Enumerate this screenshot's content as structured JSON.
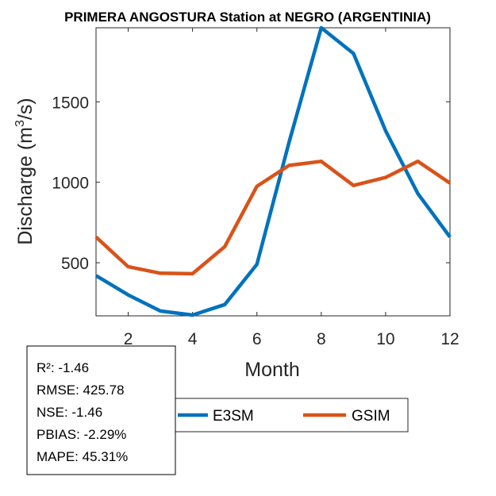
{
  "chart_data": {
    "type": "line",
    "title": "PRIMERA ANGOSTURA  Station at  NEGRO (ARGENTINIA)",
    "xlabel": "Month",
    "ylabel": "Discharge (m³/s)",
    "ylabel_parts": {
      "base": "Discharge (m",
      "sup": "3",
      "tail": "/s)"
    },
    "xlim": [
      1,
      12
    ],
    "ylim": [
      170,
      1960
    ],
    "xticks": [
      2,
      4,
      6,
      8,
      10,
      12
    ],
    "yticks": [
      500,
      1000,
      1500
    ],
    "x": [
      1,
      2,
      3,
      4,
      5,
      6,
      7,
      8,
      9,
      10,
      11,
      12
    ],
    "series": [
      {
        "name": "E3SM",
        "color": "#0072BD",
        "values": [
          420,
          300,
          200,
          175,
          240,
          490,
          1250,
          1960,
          1800,
          1320,
          930,
          660
        ]
      },
      {
        "name": "GSIM",
        "color": "#D95319",
        "values": [
          660,
          475,
          435,
          432,
          600,
          975,
          1105,
          1130,
          980,
          1030,
          1130,
          995
        ]
      }
    ],
    "legend_position": "bottom",
    "grid": false,
    "stats": [
      "R²: -1.46",
      "RMSE: 425.78",
      "NSE: -1.46",
      "PBIAS: -2.29%",
      "MAPE: 45.31%"
    ]
  }
}
